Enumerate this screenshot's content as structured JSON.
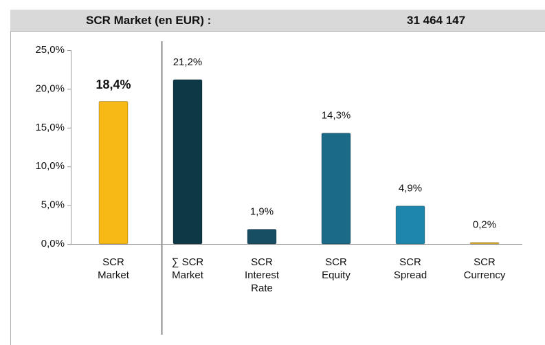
{
  "header": {
    "title": "SCR Market (en EUR) :",
    "value": "31 464 147"
  },
  "chart_data": {
    "type": "bar",
    "categories": [
      "SCR\nMarket",
      "∑ SCR\nMarket",
      "SCR\nInterest\nRate",
      "SCR\nEquity",
      "SCR\nSpread",
      "SCR\nCurrency"
    ],
    "values": [
      18.4,
      21.2,
      1.9,
      14.3,
      4.9,
      0.2
    ],
    "value_labels": [
      "18,4%",
      "21,2%",
      "1,9%",
      "14,3%",
      "4,9%",
      "0,2%"
    ],
    "colors": [
      "#f7b916",
      "#0d3947",
      "#174e63",
      "#1b6a88",
      "#1e86ad",
      "#e8b830"
    ],
    "ylim": [
      0,
      25
    ],
    "yticks": [
      {
        "value": 0,
        "label": "0,0%"
      },
      {
        "value": 5,
        "label": "5,0%"
      },
      {
        "value": 10,
        "label": "10,0%"
      },
      {
        "value": 15,
        "label": "15,0%"
      },
      {
        "value": 20,
        "label": "20,0%"
      },
      {
        "value": 25,
        "label": "25,0%"
      }
    ]
  }
}
